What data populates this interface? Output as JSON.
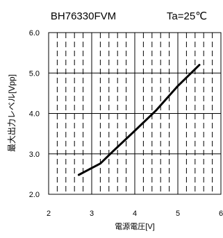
{
  "chart_data": {
    "type": "line",
    "title": "BH76330FVM",
    "condition": "Ta=25℃",
    "xlabel": "電源電圧[V]",
    "ylabel": "最大出力レベル[Vpp]",
    "xlim": [
      2,
      6
    ],
    "ylim": [
      2.0,
      6.0
    ],
    "x_ticks": [
      "2",
      "3",
      "4",
      "5",
      "6"
    ],
    "y_ticks": [
      "2.0",
      "3.0",
      "4.0",
      "5.0",
      "6.0"
    ],
    "grid": "major solid, minor dashed verticals",
    "series": [
      {
        "color": "#000000",
        "x": [
          2.7,
          3.2,
          3.5,
          4.0,
          4.5,
          5.0,
          5.5
        ],
        "y": [
          2.48,
          2.76,
          3.07,
          3.57,
          4.08,
          4.68,
          5.2
        ]
      }
    ]
  }
}
